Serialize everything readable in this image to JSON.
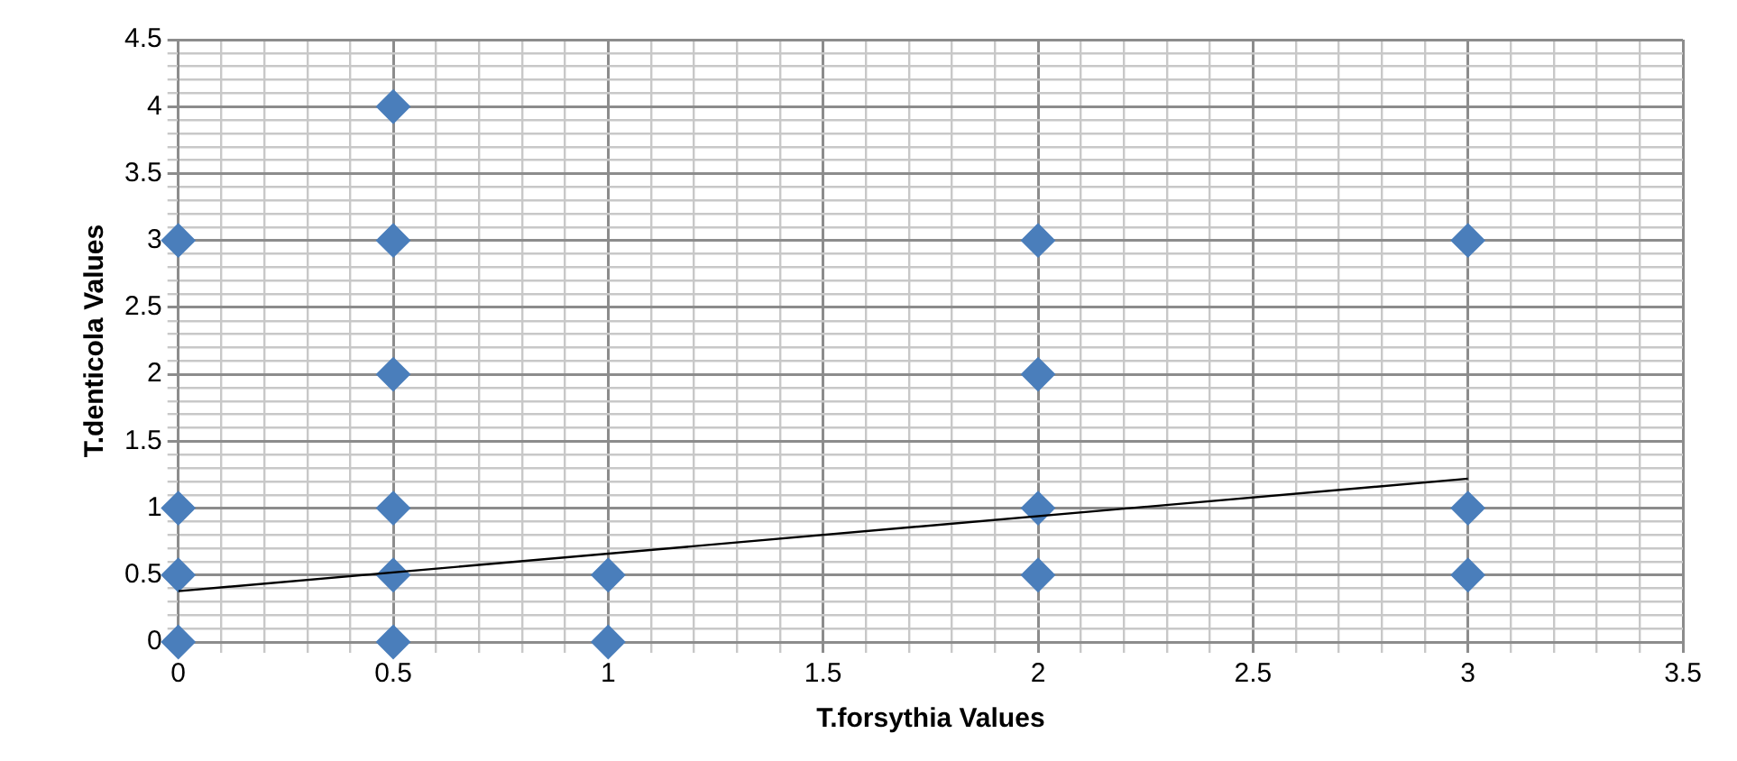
{
  "chart_data": {
    "type": "scatter",
    "xlabel": "T.forsythia Values",
    "ylabel": "T.denticola Values",
    "legend": false,
    "grid": true,
    "marker": "diamond",
    "xlim": [
      0,
      3.5
    ],
    "ylim": [
      0,
      4.5
    ],
    "xticks": [
      0,
      {
        "value": 0.1,
        "label": null
      },
      {
        "value": 0.2,
        "label": null
      },
      {
        "value": 0.3,
        "label": null
      },
      {
        "value": 0.4,
        "label": null
      },
      0.5,
      {
        "value": 0.6,
        "label": null
      },
      {
        "value": 0.7,
        "label": null
      },
      {
        "value": 0.8,
        "label": null
      },
      {
        "value": 0.9,
        "label": null
      },
      1,
      {
        "value": 1.1,
        "label": null
      },
      {
        "value": 1.2,
        "label": null
      },
      {
        "value": 1.3,
        "label": null
      },
      {
        "value": 1.4,
        "label": null
      },
      1.5,
      {
        "value": 1.6,
        "label": null
      },
      {
        "value": 1.7,
        "label": null
      },
      {
        "value": 1.8,
        "label": null
      },
      {
        "value": 1.9,
        "label": null
      },
      2,
      {
        "value": 2.1,
        "label": null
      },
      {
        "value": 2.2,
        "label": null
      },
      {
        "value": 2.3,
        "label": null
      },
      {
        "value": 2.4,
        "label": null
      },
      2.5,
      {
        "value": 2.6,
        "label": null
      },
      {
        "value": 2.7,
        "label": null
      },
      {
        "value": 2.8,
        "label": null
      },
      {
        "value": 2.9,
        "label": null
      },
      3,
      {
        "value": 3.1,
        "label": null
      },
      {
        "value": 3.2,
        "label": null
      },
      {
        "value": 3.3,
        "label": null
      },
      {
        "value": 3.4,
        "label": null
      },
      3.5
    ],
    "yticks": [
      0,
      {
        "value": 0.1,
        "label": null
      },
      {
        "value": 0.2,
        "label": null
      },
      {
        "value": 0.3,
        "label": null
      },
      {
        "value": 0.4,
        "label": null
      },
      0.5,
      {
        "value": 0.6,
        "label": null
      },
      {
        "value": 0.7,
        "label": null
      },
      {
        "value": 0.8,
        "label": null
      },
      {
        "value": 0.9,
        "label": null
      },
      1,
      {
        "value": 1.1,
        "label": null
      },
      {
        "value": 1.2,
        "label": null
      },
      {
        "value": 1.3,
        "label": null
      },
      {
        "value": 1.4,
        "label": null
      },
      1.5,
      {
        "value": 1.6,
        "label": null
      },
      {
        "value": 1.7,
        "label": null
      },
      {
        "value": 1.8,
        "label": null
      },
      {
        "value": 1.9,
        "label": null
      },
      2,
      {
        "value": 2.1,
        "label": null
      },
      {
        "value": 2.2,
        "label": null
      },
      {
        "value": 2.3,
        "label": null
      },
      {
        "value": 2.4,
        "label": null
      },
      2.5,
      {
        "value": 2.6,
        "label": null
      },
      {
        "value": 2.7,
        "label": null
      },
      {
        "value": 2.8,
        "label": null
      },
      {
        "value": 2.9,
        "label": null
      },
      3,
      {
        "value": 3.1,
        "label": null
      },
      {
        "value": 3.2,
        "label": null
      },
      {
        "value": 3.3,
        "label": null
      },
      {
        "value": 3.4,
        "label": null
      },
      3.5,
      {
        "value": 3.6,
        "label": null
      },
      {
        "value": 3.7,
        "label": null
      },
      {
        "value": 3.8,
        "label": null
      },
      {
        "value": 3.9,
        "label": null
      },
      4,
      {
        "value": 4.1,
        "label": null
      },
      {
        "value": 4.2,
        "label": null
      },
      {
        "value": 4.3,
        "label": null
      },
      {
        "value": 4.4,
        "label": null
      },
      4.5
    ],
    "series": [
      {
        "color": "#4a7ebb",
        "x": [
          0,
          0,
          0,
          0,
          0.5,
          0.5,
          0.5,
          0.5,
          0.5,
          0.5,
          1,
          1,
          2,
          2,
          2,
          2,
          3,
          3,
          3
        ],
        "values": [
          3,
          1,
          0.5,
          0,
          4,
          3,
          2,
          1,
          0.5,
          0,
          0.5,
          0,
          3,
          2,
          1,
          0.5,
          3,
          1,
          0.5
        ]
      },
      {
        "type": "line",
        "color": "#000000",
        "marker": "none",
        "x": [
          0,
          3
        ],
        "values": [
          0.38,
          1.22
        ]
      }
    ]
  }
}
